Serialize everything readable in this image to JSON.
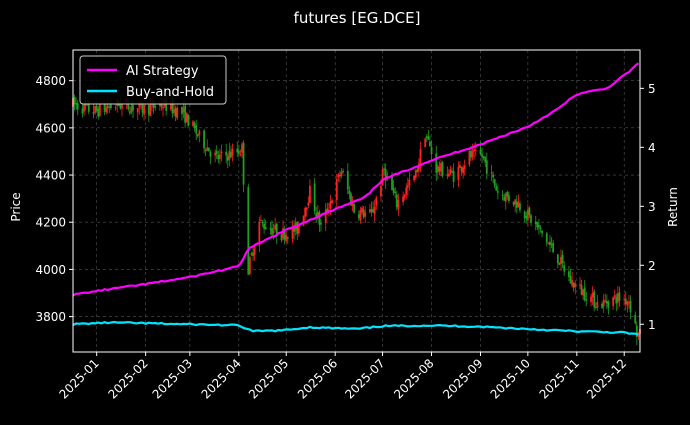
{
  "chart_data": {
    "type": "candlestick",
    "title": "futures [EG.DCE]",
    "ylabel_left": "Price",
    "ylabel_right": "Return",
    "xlabel": "",
    "x_ticks": [
      "2025-01",
      "2025-02",
      "2025-03",
      "2025-04",
      "2025-05",
      "2025-06",
      "2025-07",
      "2025-08",
      "2025-09",
      "2025-10",
      "2025-11",
      "2025-12"
    ],
    "x_range": [
      "2024-12-17",
      "2025-12-11"
    ],
    "ylim_left": [
      3650,
      4930
    ],
    "yticks_left": [
      3800,
      4000,
      4200,
      4400,
      4600,
      4800
    ],
    "ylim_right": [
      0.53,
      5.65
    ],
    "yticks_right": [
      1,
      2,
      3,
      4,
      5
    ],
    "grid": true,
    "legend": {
      "position": "top-left",
      "entries": [
        "AI Strategy",
        "Buy-and-Hold"
      ]
    },
    "colors": {
      "up": "#ff2020",
      "down": "#1fa01f",
      "ai": "#ff00ff",
      "bh": "#00e5ff",
      "background": "#000000",
      "grid": "#555555"
    },
    "price_path": [
      [
        "2024-12-17",
        4700
      ],
      [
        "2024-12-31",
        4670
      ],
      [
        "2025-01-15",
        4700
      ],
      [
        "2025-01-31",
        4680
      ],
      [
        "2025-02-12",
        4700
      ],
      [
        "2025-02-25",
        4660
      ],
      [
        "2025-03-07",
        4560
      ],
      [
        "2025-03-18",
        4470
      ],
      [
        "2025-03-31",
        4500
      ],
      [
        "2025-04-03",
        4510
      ],
      [
        "2025-04-07",
        4000
      ],
      [
        "2025-04-14",
        4200
      ],
      [
        "2025-04-28",
        4150
      ],
      [
        "2025-05-08",
        4170
      ],
      [
        "2025-05-16",
        4330
      ],
      [
        "2025-05-23",
        4180
      ],
      [
        "2025-06-05",
        4420
      ],
      [
        "2025-06-13",
        4250
      ],
      [
        "2025-06-24",
        4230
      ],
      [
        "2025-07-02",
        4420
      ],
      [
        "2025-07-10",
        4280
      ],
      [
        "2025-07-22",
        4400
      ],
      [
        "2025-07-28",
        4580
      ],
      [
        "2025-08-04",
        4430
      ],
      [
        "2025-08-15",
        4400
      ],
      [
        "2025-08-25",
        4480
      ],
      [
        "2025-09-02",
        4480
      ],
      [
        "2025-09-12",
        4330
      ],
      [
        "2025-09-25",
        4280
      ],
      [
        "2025-10-10",
        4150
      ],
      [
        "2025-10-20",
        4050
      ],
      [
        "2025-10-28",
        3950
      ],
      [
        "2025-11-06",
        3900
      ],
      [
        "2025-11-15",
        3850
      ],
      [
        "2025-11-26",
        3880
      ],
      [
        "2025-12-04",
        3870
      ],
      [
        "2025-12-09",
        3730
      ],
      [
        "2025-12-11",
        3720
      ]
    ],
    "series": [
      {
        "name": "AI Strategy",
        "axis": "right",
        "points": [
          [
            "2024-12-17",
            1.5
          ],
          [
            "2025-01-10",
            1.6
          ],
          [
            "2025-02-01",
            1.68
          ],
          [
            "2025-03-01",
            1.8
          ],
          [
            "2025-04-01",
            1.98
          ],
          [
            "2025-04-07",
            2.28
          ],
          [
            "2025-05-01",
            2.6
          ],
          [
            "2025-06-01",
            2.95
          ],
          [
            "2025-06-20",
            3.15
          ],
          [
            "2025-07-01",
            3.45
          ],
          [
            "2025-08-01",
            3.78
          ],
          [
            "2025-09-01",
            4.05
          ],
          [
            "2025-10-01",
            4.35
          ],
          [
            "2025-10-20",
            4.65
          ],
          [
            "2025-11-01",
            4.9
          ],
          [
            "2025-11-20",
            5.0
          ],
          [
            "2025-12-04",
            5.28
          ],
          [
            "2025-12-11",
            5.45
          ]
        ]
      },
      {
        "name": "Buy-and-Hold",
        "axis": "right",
        "points": [
          [
            "2024-12-17",
            1.0
          ],
          [
            "2025-01-10",
            1.03
          ],
          [
            "2025-03-01",
            1.0
          ],
          [
            "2025-04-01",
            0.98
          ],
          [
            "2025-04-10",
            0.88
          ],
          [
            "2025-05-01",
            0.9
          ],
          [
            "2025-05-15",
            0.95
          ],
          [
            "2025-06-15",
            0.92
          ],
          [
            "2025-07-01",
            0.97
          ],
          [
            "2025-08-01",
            0.98
          ],
          [
            "2025-09-01",
            0.96
          ],
          [
            "2025-10-01",
            0.92
          ],
          [
            "2025-11-01",
            0.88
          ],
          [
            "2025-12-01",
            0.86
          ],
          [
            "2025-12-11",
            0.82
          ]
        ]
      }
    ]
  }
}
